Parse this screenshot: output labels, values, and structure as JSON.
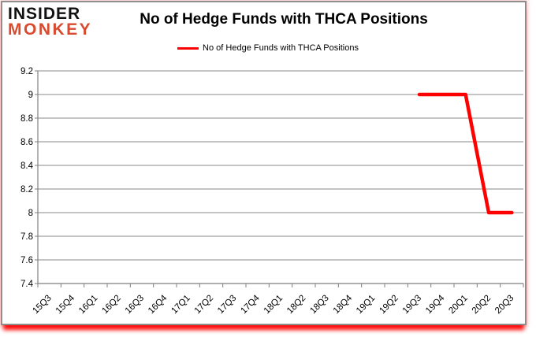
{
  "logo": {
    "line1": "INSIDER",
    "line2": "MONKEY",
    "accent_color": "#d84b2e"
  },
  "header": {
    "title": "No of Hedge Funds with THCA Positions"
  },
  "legend": {
    "label": "No of Hedge Funds with THCA Positions",
    "swatch_color": "#ff0000"
  },
  "colors": {
    "series": "#ff0000",
    "grid": "#8a8a8a",
    "axis": "#7f7f7f",
    "tick_text": "#000000",
    "card_border": "#8e8e8e",
    "glow": "#ff0000"
  },
  "chart_data": {
    "type": "line",
    "title": "No of Hedge Funds with THCA Positions",
    "categories": [
      "15Q3",
      "15Q4",
      "16Q1",
      "16Q2",
      "16Q3",
      "16Q4",
      "17Q1",
      "17Q2",
      "17Q3",
      "17Q4",
      "18Q1",
      "18Q2",
      "18Q3",
      "18Q4",
      "19Q1",
      "19Q2",
      "19Q3",
      "19Q4",
      "20Q1",
      "20Q2",
      "20Q3"
    ],
    "series": [
      {
        "name": "No of Hedge Funds with THCA Positions",
        "color": "#ff0000",
        "values": [
          null,
          null,
          null,
          null,
          null,
          null,
          null,
          null,
          null,
          null,
          null,
          null,
          null,
          null,
          null,
          null,
          9,
          9,
          9,
          8,
          8
        ]
      }
    ],
    "xlabel": "",
    "ylabel": "",
    "ylim": [
      7.4,
      9.2
    ],
    "ytick_step": 0.2,
    "grid": true,
    "legend_position": "top-center"
  }
}
